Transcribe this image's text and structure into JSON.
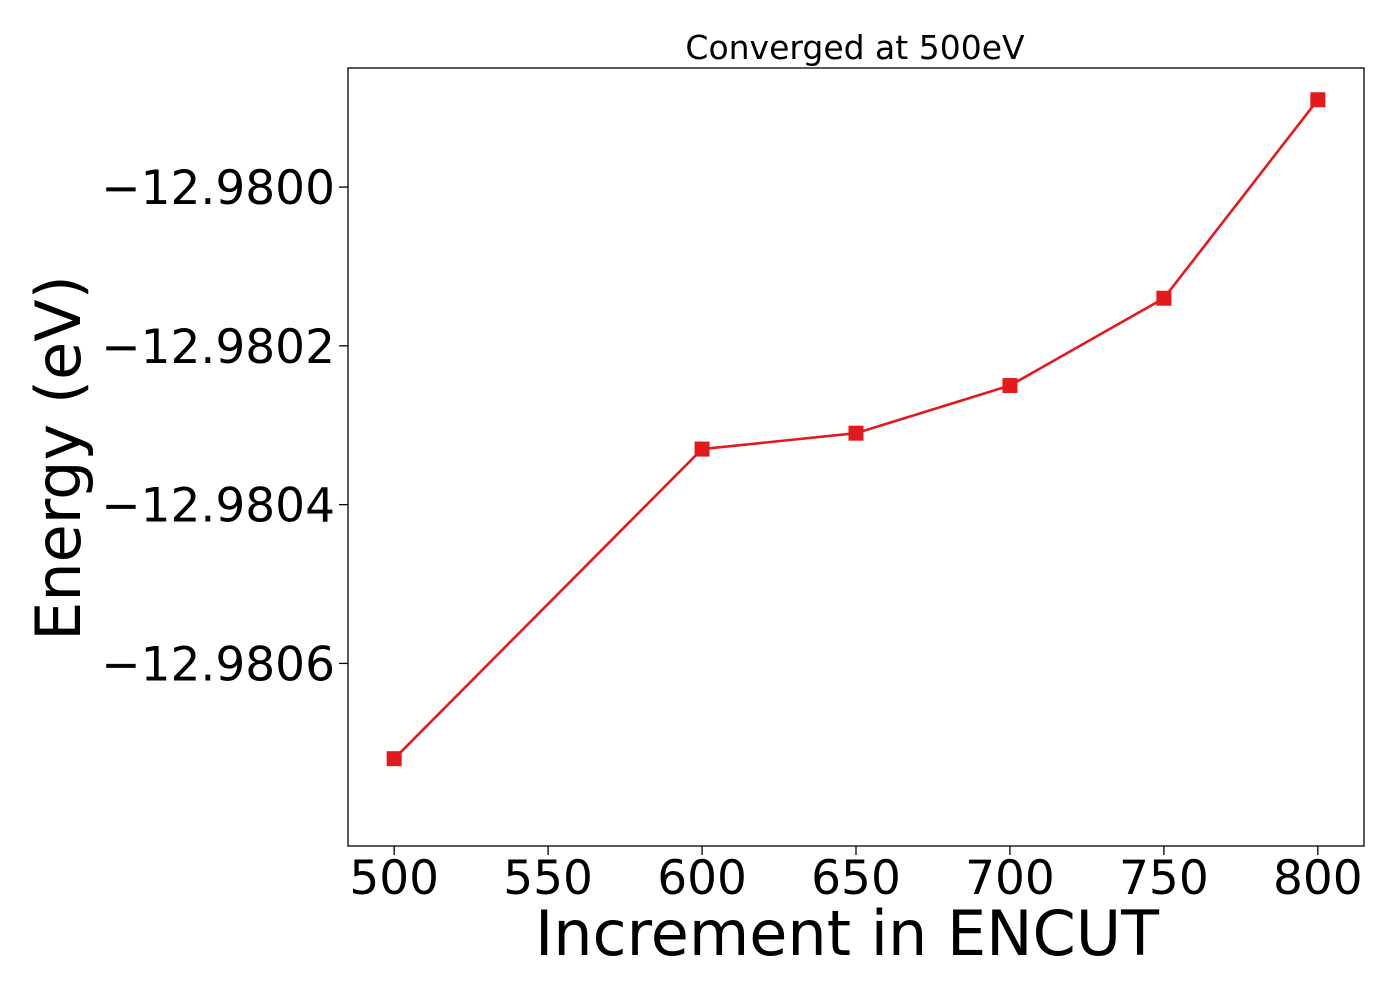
{
  "chart_data": {
    "type": "line",
    "title": "Converged at 500eV",
    "xlabel": "Increment in ENCUT",
    "ylabel": "Energy (eV)",
    "x": [
      500,
      600,
      650,
      700,
      750,
      800
    ],
    "series": [
      {
        "values": [
          -12.98072,
          -12.98033,
          -12.98031,
          -12.98025,
          -12.98014,
          -12.97989
        ],
        "color": "#e31a1c",
        "marker": "square"
      }
    ],
    "xlim": [
      485,
      815
    ],
    "ylim": [
      -12.98083,
      -12.97985
    ],
    "xticks": [
      500,
      550,
      600,
      650,
      700,
      750,
      800
    ],
    "xtick_labels": [
      "500",
      "550",
      "600",
      "650",
      "700",
      "750",
      "800"
    ],
    "yticks": [
      -12.9806,
      -12.9804,
      -12.9802,
      -12.98
    ],
    "ytick_labels": [
      "−12.9806",
      "−12.9804",
      "−12.9802",
      "−12.9800"
    ],
    "grid": false,
    "legend": false
  }
}
